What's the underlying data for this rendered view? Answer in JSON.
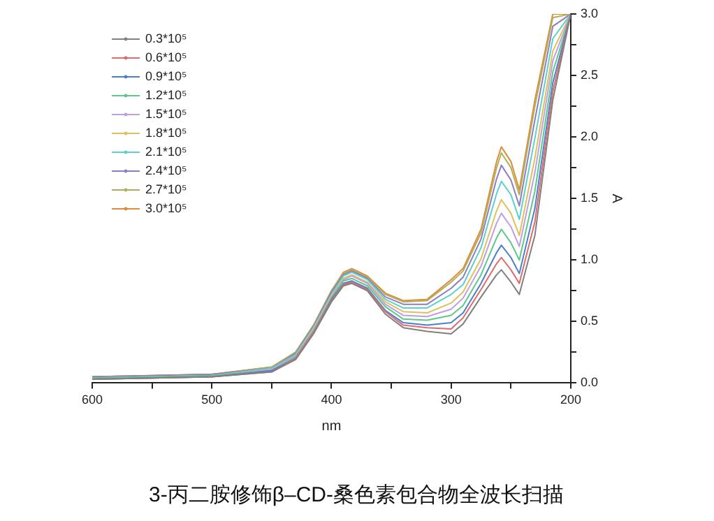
{
  "chart_data": {
    "type": "line",
    "xlabel": "nm",
    "ylabel": "A",
    "legend": "top left",
    "grid": false,
    "marker": "none",
    "line_style": "solid",
    "x": [
      600,
      500,
      450,
      430,
      415,
      400,
      390,
      383,
      370,
      355,
      340,
      320,
      300,
      290,
      275,
      262,
      258,
      250,
      243,
      230,
      215,
      200
    ],
    "xlim": [
      600,
      200
    ],
    "xticks": [
      600,
      {
        "value": 550,
        "label": null
      },
      500,
      {
        "value": 450,
        "label": null
      },
      400,
      {
        "value": 350,
        "label": null
      },
      300,
      {
        "value": 250,
        "label": null
      },
      200
    ],
    "ylim": [
      0,
      3
    ],
    "yticks": [
      {
        "value": 0,
        "label": "0.0"
      },
      {
        "value": 0.25,
        "label": null
      },
      {
        "value": 0.5,
        "label": "0.5"
      },
      {
        "value": 0.75,
        "label": null
      },
      {
        "value": 1,
        "label": "1.0"
      },
      {
        "value": 1.25,
        "label": null
      },
      {
        "value": 1.5,
        "label": "1.5"
      },
      {
        "value": 1.75,
        "label": null
      },
      {
        "value": 2,
        "label": "2.0"
      },
      {
        "value": 2.25,
        "label": null
      },
      {
        "value": 2.5,
        "label": "2.5"
      },
      {
        "value": 2.75,
        "label": null
      },
      {
        "value": 3,
        "label": "3.0"
      }
    ],
    "series": [
      {
        "name": "0.3*10⁵",
        "color": "#808080",
        "values": [
          0.03,
          0.05,
          0.09,
          0.19,
          0.4,
          0.66,
          0.79,
          0.81,
          0.75,
          0.56,
          0.45,
          0.42,
          0.4,
          0.48,
          0.7,
          0.88,
          0.92,
          0.82,
          0.72,
          1.2,
          2.3,
          3.0
        ]
      },
      {
        "name": "0.6*10⁵",
        "color": "#e06a6a",
        "values": [
          0.03,
          0.05,
          0.09,
          0.2,
          0.41,
          0.67,
          0.8,
          0.82,
          0.76,
          0.58,
          0.47,
          0.45,
          0.44,
          0.53,
          0.76,
          0.97,
          1.02,
          0.92,
          0.81,
          1.31,
          2.37,
          3.0
        ]
      },
      {
        "name": "0.9*10⁵",
        "color": "#4a7fd0",
        "values": [
          0.03,
          0.05,
          0.1,
          0.2,
          0.41,
          0.68,
          0.81,
          0.83,
          0.77,
          0.59,
          0.49,
          0.47,
          0.49,
          0.57,
          0.81,
          1.06,
          1.12,
          1.02,
          0.89,
          1.42,
          2.44,
          3.0
        ]
      },
      {
        "name": "1.2*10⁵",
        "color": "#5cc88a",
        "values": [
          0.04,
          0.06,
          0.1,
          0.21,
          0.42,
          0.69,
          0.83,
          0.85,
          0.79,
          0.62,
          0.52,
          0.51,
          0.55,
          0.63,
          0.88,
          1.18,
          1.25,
          1.14,
          1.0,
          1.56,
          2.53,
          3.0
        ]
      },
      {
        "name": "1.5*10⁵",
        "color": "#c09ee0",
        "values": [
          0.04,
          0.06,
          0.11,
          0.22,
          0.43,
          0.7,
          0.84,
          0.87,
          0.81,
          0.64,
          0.55,
          0.54,
          0.6,
          0.69,
          0.95,
          1.3,
          1.38,
          1.27,
          1.11,
          1.71,
          2.62,
          3.0
        ]
      },
      {
        "name": "1.8*10⁵",
        "color": "#e0c05a",
        "values": [
          0.04,
          0.06,
          0.11,
          0.22,
          0.44,
          0.71,
          0.85,
          0.88,
          0.82,
          0.66,
          0.58,
          0.57,
          0.65,
          0.74,
          1.01,
          1.4,
          1.49,
          1.38,
          1.2,
          1.83,
          2.7,
          3.0
        ]
      },
      {
        "name": "2.1*10⁵",
        "color": "#5cd0d0",
        "values": [
          0.04,
          0.06,
          0.12,
          0.23,
          0.45,
          0.72,
          0.87,
          0.9,
          0.84,
          0.68,
          0.61,
          0.61,
          0.72,
          0.8,
          1.1,
          1.54,
          1.64,
          1.53,
          1.33,
          1.99,
          2.8,
          3.0
        ]
      },
      {
        "name": "2.4*10⁵",
        "color": "#8e7cc0",
        "values": [
          0.05,
          0.07,
          0.12,
          0.24,
          0.46,
          0.74,
          0.88,
          0.91,
          0.85,
          0.7,
          0.64,
          0.64,
          0.77,
          0.86,
          1.17,
          1.66,
          1.77,
          1.65,
          1.44,
          2.14,
          2.9,
          3.0
        ]
      },
      {
        "name": "2.7*10⁵",
        "color": "#b0b05a",
        "values": [
          0.05,
          0.07,
          0.13,
          0.25,
          0.47,
          0.75,
          0.89,
          0.92,
          0.86,
          0.72,
          0.66,
          0.67,
          0.82,
          0.91,
          1.22,
          1.75,
          1.87,
          1.75,
          1.53,
          2.25,
          2.97,
          3.0
        ]
      },
      {
        "name": "3.0*10⁵",
        "color": "#e08a3a",
        "values": [
          0.05,
          0.07,
          0.13,
          0.25,
          0.47,
          0.75,
          0.9,
          0.93,
          0.87,
          0.73,
          0.67,
          0.68,
          0.84,
          0.93,
          1.25,
          1.8,
          1.92,
          1.8,
          1.57,
          2.3,
          3.0,
          3.0
        ]
      }
    ],
    "annotations": [
      "3-丙二胺修饰β–CD-桑色素包合物全波长扫描"
    ]
  }
}
